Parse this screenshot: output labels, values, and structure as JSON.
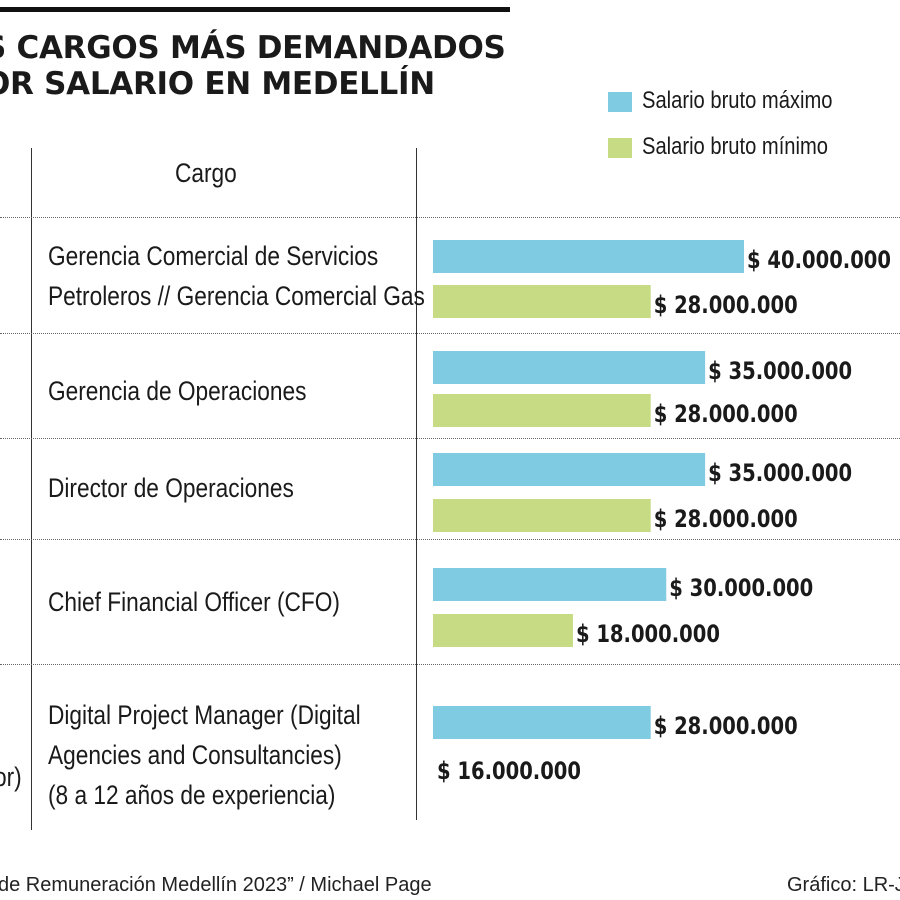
{
  "title": {
    "line1": "S CARGOS MÁS DEMANDADOS",
    "line2": "OR SALARIO EN MEDELLÍN"
  },
  "table": {
    "column_header": "Cargo",
    "left_fragment": "or)"
  },
  "footer": {
    "source": "de Remuneración Medellín 2023” / Michael Page",
    "credit": "Gráfico: LR-JI"
  },
  "colors": {
    "max": "#7fcbe2",
    "min": "#c6db83",
    "text": "#1a1a1a"
  },
  "chart_data": {
    "type": "bar",
    "orientation": "horizontal",
    "categories": [
      [
        "Gerencia Comercial de Servicios",
        "Petroleros // Gerencia Comercial Gas"
      ],
      [
        "Gerencia de Operaciones"
      ],
      [
        "Director de Operaciones"
      ],
      [
        "Chief Financial Officer (CFO)"
      ],
      [
        "Digital Project Manager (Digital",
        "Agencies and Consultancies)",
        "(8 a 12 años de experiencia)"
      ]
    ],
    "series": [
      {
        "name": "Salario bruto máximo",
        "values": [
          40000000,
          35000000,
          35000000,
          30000000,
          28000000
        ],
        "labels": [
          "$ 40.000.000",
          "$ 35.000.000",
          "$ 35.000.000",
          "$ 30.000.000",
          "$ 28.000.000"
        ]
      },
      {
        "name": "Salario bruto mínimo",
        "values": [
          28000000,
          28000000,
          28000000,
          18000000,
          16000000
        ],
        "labels": [
          "$ 28.000.000",
          "$ 28.000.000",
          "$ 28.000.000",
          "$ 18.000.000",
          "$ 16.000.000"
        ]
      }
    ],
    "legend_position": "top-right",
    "grid": false
  }
}
